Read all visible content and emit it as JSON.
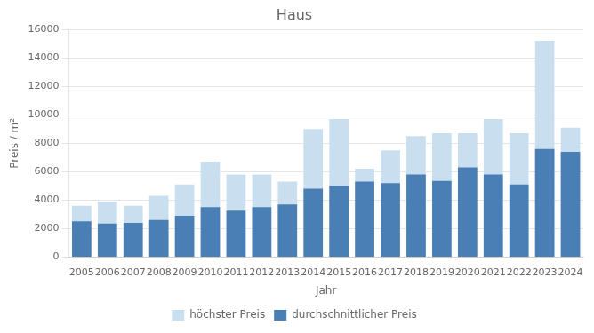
{
  "chart_data": {
    "type": "bar",
    "title": "Haus",
    "x_label": "Jahr",
    "y_label": "Preis / m²",
    "categories": [
      "2005",
      "2006",
      "2007",
      "2008",
      "2009",
      "2010",
      "2011",
      "2012",
      "2013",
      "2014",
      "2015",
      "2016",
      "2017",
      "2018",
      "2019",
      "2020",
      "2021",
      "2022",
      "2023",
      "2024"
    ],
    "series": [
      {
        "name": "höchster Preis",
        "color": "#c9dff0",
        "values": [
          3600,
          3900,
          3600,
          4300,
          5100,
          6700,
          5800,
          5800,
          5300,
          9000,
          9700,
          6200,
          7500,
          8500,
          8700,
          8700,
          9700,
          8700,
          15200,
          9100
        ]
      },
      {
        "name": "durchschnittlicher Preis",
        "color": "#4a7fb5",
        "values": [
          2500,
          2350,
          2400,
          2600,
          2900,
          3500,
          3250,
          3500,
          3700,
          4800,
          5000,
          5300,
          5200,
          5800,
          5350,
          6300,
          5800,
          5100,
          7600,
          7400
        ]
      }
    ],
    "ylim": [
      0,
      16000
    ],
    "yticks": [
      0,
      2000,
      4000,
      6000,
      8000,
      10000,
      12000,
      14000,
      16000
    ],
    "grid": true,
    "legend": "bottom"
  }
}
